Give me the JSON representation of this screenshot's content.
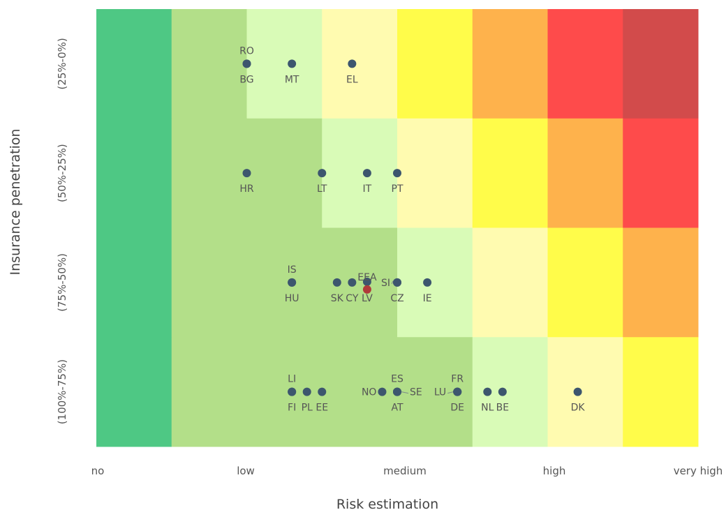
{
  "chart_data": {
    "type": "heatmap",
    "xlabel": "Risk estimation",
    "ylabel": "Insurance penetration",
    "x_ticks": [
      "no",
      "low",
      "medium",
      "high",
      "very high"
    ],
    "y_ticks": [
      "(25%-0%)",
      "(50%-25%)",
      "(75%-50%)",
      "(100%-75%)"
    ],
    "x_range": [
      0,
      8
    ],
    "colors": {
      "dark_green": "#4ec884",
      "light_green": "#b3df89",
      "pale_green": "#d9fbb7",
      "pale_yellow": "#fffbb0",
      "yellow": "#fffc4a",
      "orange": "#feb24c",
      "red": "#fe4b4b",
      "dark_red": "#d24b4b",
      "point": "#3d566e",
      "highlight_point": "#b03a3a"
    },
    "grid": [
      [
        "dark_green",
        "light_green",
        "pale_green",
        "pale_yellow",
        "yellow",
        "orange",
        "red",
        "dark_red"
      ],
      [
        "dark_green",
        "light_green",
        "light_green",
        "pale_green",
        "pale_yellow",
        "yellow",
        "orange",
        "red"
      ],
      [
        "dark_green",
        "light_green",
        "light_green",
        "light_green",
        "pale_green",
        "pale_yellow",
        "yellow",
        "orange"
      ],
      [
        "dark_green",
        "light_green",
        "light_green",
        "light_green",
        "light_green",
        "pale_green",
        "pale_yellow",
        "yellow"
      ]
    ],
    "points": [
      {
        "label": "RO",
        "x": 2.0,
        "row": 0
      },
      {
        "label": "BG",
        "x": 2.0,
        "row": 0
      },
      {
        "label": "MT",
        "x": 2.6,
        "row": 0
      },
      {
        "label": "EL",
        "x": 3.4,
        "row": 0
      },
      {
        "label": "HR",
        "x": 2.0,
        "row": 1
      },
      {
        "label": "LT",
        "x": 3.0,
        "row": 1
      },
      {
        "label": "IT",
        "x": 3.6,
        "row": 1
      },
      {
        "label": "PT",
        "x": 4.0,
        "row": 1
      },
      {
        "label": "IS",
        "x": 2.6,
        "row": 2
      },
      {
        "label": "HU",
        "x": 2.6,
        "row": 2
      },
      {
        "label": "SK",
        "x": 3.2,
        "row": 2
      },
      {
        "label": "CY",
        "x": 3.4,
        "row": 2
      },
      {
        "label": "EEA",
        "x": 3.6,
        "row": 2,
        "highlight": false
      },
      {
        "label": "LV",
        "x": 3.6,
        "row": 2,
        "highlight": true
      },
      {
        "label": "SI",
        "x": 4.0,
        "row": 2
      },
      {
        "label": "CZ",
        "x": 4.0,
        "row": 2
      },
      {
        "label": "IE",
        "x": 4.4,
        "row": 2
      },
      {
        "label": "LI",
        "x": 2.6,
        "row": 3
      },
      {
        "label": "FI",
        "x": 2.6,
        "row": 3
      },
      {
        "label": "PL",
        "x": 2.8,
        "row": 3
      },
      {
        "label": "EE",
        "x": 3.0,
        "row": 3
      },
      {
        "label": "NO",
        "x": 3.8,
        "row": 3
      },
      {
        "label": "ES",
        "x": 4.0,
        "row": 3
      },
      {
        "label": "AT",
        "x": 4.0,
        "row": 3
      },
      {
        "label": "SE",
        "x": 4.0,
        "row": 3
      },
      {
        "label": "FR",
        "x": 4.8,
        "row": 3
      },
      {
        "label": "LU",
        "x": 4.8,
        "row": 3
      },
      {
        "label": "DE",
        "x": 4.8,
        "row": 3
      },
      {
        "label": "NL",
        "x": 5.2,
        "row": 3
      },
      {
        "label": "BE",
        "x": 5.4,
        "row": 3
      },
      {
        "label": "DK",
        "x": 6.4,
        "row": 3
      }
    ]
  }
}
